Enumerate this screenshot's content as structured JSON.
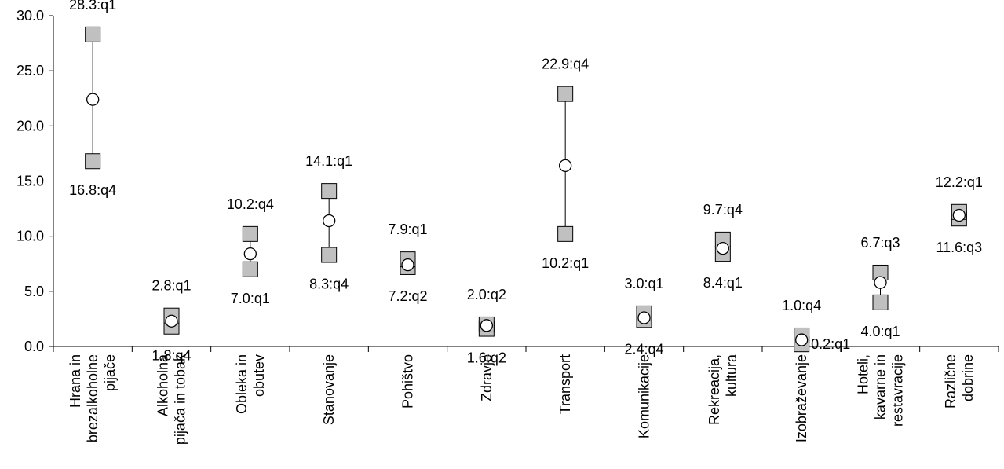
{
  "chart_data": {
    "type": "range",
    "ylim": [
      0,
      30
    ],
    "yticks": [
      "0.0",
      "5.0",
      "10.0",
      "15.0",
      "20.0",
      "25.0",
      "30.0"
    ],
    "categories": [
      [
        "Hrana in",
        "brezalkoholne",
        "pijače"
      ],
      [
        "Alkoholna",
        "pijača in tobak"
      ],
      [
        "Obleka in",
        "obutev"
      ],
      [
        "Stanovanje"
      ],
      [
        "Pohištvo"
      ],
      [
        "Zdravje"
      ],
      [
        "Transport"
      ],
      [
        "Komunikacije"
      ],
      [
        "Rekreacija,",
        "kultura"
      ],
      [
        "Izobraževanje"
      ],
      [
        "Hoteli,",
        "kavarne in",
        "restavracije"
      ],
      [
        "Različne",
        "dobrine"
      ]
    ],
    "high": [
      28.3,
      2.8,
      10.2,
      14.1,
      7.9,
      2.0,
      22.9,
      3.0,
      9.7,
      1.0,
      6.7,
      12.2
    ],
    "low": [
      16.8,
      1.8,
      7.0,
      8.3,
      7.2,
      1.6,
      10.2,
      2.4,
      8.4,
      0.2,
      4.0,
      11.6
    ],
    "mid": [
      22.4,
      2.3,
      8.4,
      11.4,
      7.4,
      1.9,
      16.4,
      2.6,
      8.9,
      0.6,
      5.8,
      11.9
    ],
    "high_labels": [
      "28.3:q1",
      "2.8:q1",
      "10.2:q4",
      "14.1:q1",
      "7.9:q1",
      "2.0:q2",
      "22.9:q4",
      "3.0:q1",
      "9.7:q4",
      "1.0:q4",
      "6.7:q3",
      "12.2:q1"
    ],
    "low_labels": [
      "16.8:q4",
      "1.8:q4",
      "7.0:q1",
      "8.3:q4",
      "7.2:q2",
      "1.6:q2",
      "10.2:q1",
      "2.4:q4",
      "8.4:q1",
      "0.2:q1",
      "4.0:q1",
      "11.6:q3"
    ],
    "colors": {
      "marker_fill": "#c0c0c0",
      "mid_fill": "#ffffff",
      "stroke": "#000000"
    }
  }
}
